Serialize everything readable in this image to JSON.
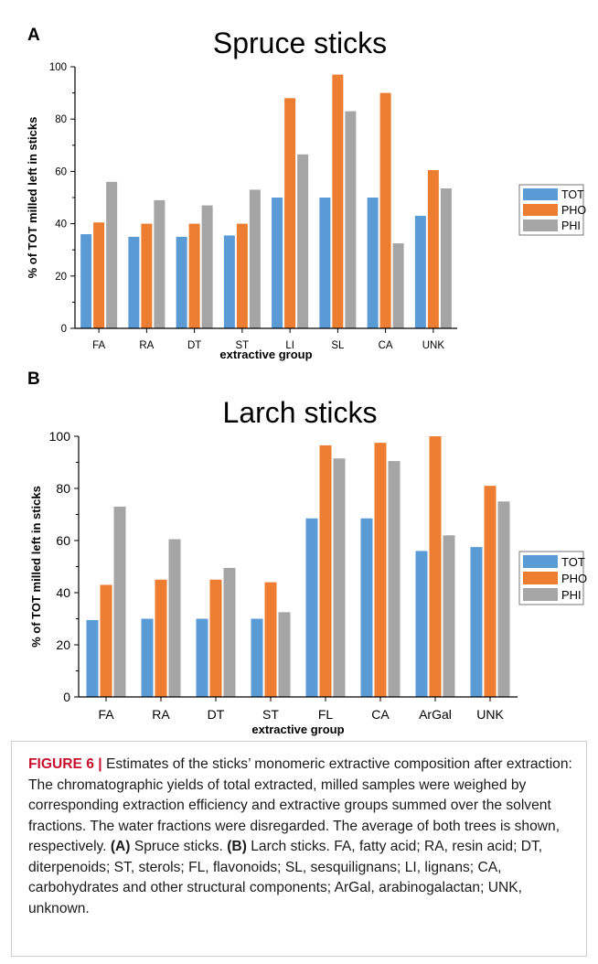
{
  "chart_data": [
    {
      "panel": "A",
      "type": "bar",
      "title": "Spruce sticks",
      "xlabel": "extractive group",
      "ylabel": "% of TOT milled left in sticks",
      "ylim": [
        0,
        100
      ],
      "yticks": [
        0,
        20,
        40,
        60,
        80,
        100
      ],
      "categories": [
        "FA",
        "RA",
        "DT",
        "ST",
        "LI",
        "SL",
        "CA",
        "UNK"
      ],
      "series": [
        {
          "name": "TOT",
          "color": "#5b9bd5",
          "values": [
            36,
            35,
            35,
            35.5,
            50,
            50,
            50,
            43
          ]
        },
        {
          "name": "PHO",
          "color": "#ed7d31",
          "values": [
            40.5,
            40,
            40,
            40,
            88,
            97,
            90,
            60.5
          ]
        },
        {
          "name": "PHI",
          "color": "#a5a5a5",
          "values": [
            56,
            49,
            47,
            53,
            66.5,
            83,
            32.5,
            53.5
          ]
        }
      ],
      "legend": "right"
    },
    {
      "panel": "B",
      "type": "bar",
      "title": "Larch sticks",
      "xlabel": "extractive group",
      "ylabel": "% of TOT milled left in sticks",
      "ylim": [
        0,
        100
      ],
      "yticks": [
        0,
        20,
        40,
        60,
        80,
        100
      ],
      "categories": [
        "FA",
        "RA",
        "DT",
        "ST",
        "FL",
        "CA",
        "ArGal",
        "UNK"
      ],
      "series": [
        {
          "name": "TOT",
          "color": "#5b9bd5",
          "values": [
            29.5,
            30,
            30,
            30,
            68.5,
            68.5,
            56,
            57.5
          ]
        },
        {
          "name": "PHO",
          "color": "#ed7d31",
          "values": [
            43,
            45,
            45,
            44,
            96.5,
            97.5,
            100,
            81
          ]
        },
        {
          "name": "PHI",
          "color": "#a5a5a5",
          "values": [
            73,
            60.5,
            49.5,
            32.5,
            91.5,
            90.5,
            62,
            75
          ]
        }
      ],
      "legend": "right"
    }
  ],
  "caption": {
    "label": "FIGURE 6 |",
    "text_1": " Estimates of the sticks’ monomeric extractive composition after extraction: The chromatographic yields of total extracted, milled samples were weighed by corresponding extraction efficiency and extractive groups summed over the solvent fractions. The water fractions were disregarded. The average of both trees is shown, respectively. ",
    "a_label": "(A)",
    "a_text": " Spruce sticks. ",
    "b_label": "(B)",
    "b_text": " Larch sticks. FA, fatty acid; RA, resin acid; DT, diterpenoids; ST, sterols; FL, flavonoids; SL, sesquilignans; LI, lignans; CA, carbohydrates and other structural components; ArGal, arabinogalactan; UNK, unknown."
  }
}
